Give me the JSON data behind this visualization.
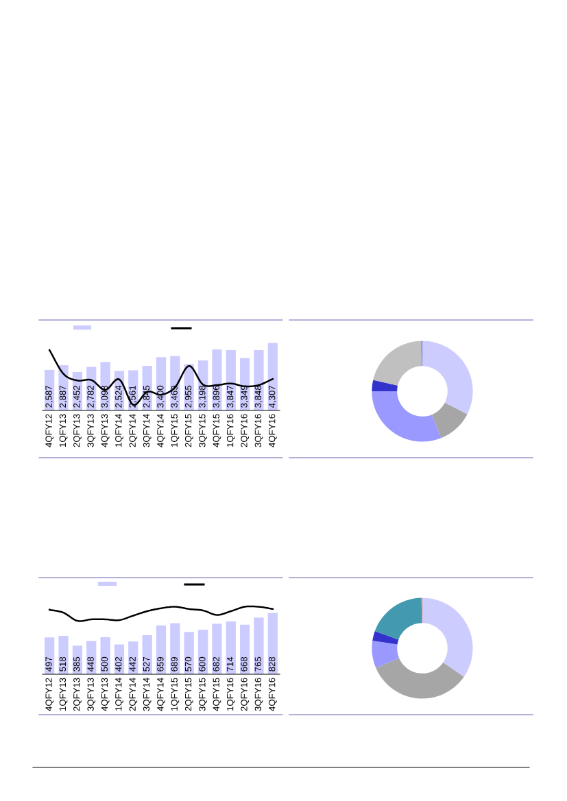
{
  "chart_data": [
    {
      "type": "bar",
      "categories": [
        "4QFY12",
        "1QFY13",
        "2QFY13",
        "3QFY13",
        "4QFY13",
        "1QFY14",
        "2QFY14",
        "3QFY14",
        "4QFY14",
        "1QFY15",
        "2QFY15",
        "3QFY15",
        "4QFY15",
        "1QFY16",
        "2QFY16",
        "3QFY16",
        "4QFY16"
      ],
      "series": [
        {
          "type": "bar",
          "color": "#ccccff",
          "values": [
            2587,
            2887,
            2452,
            2782,
            3098,
            2524,
            2561,
            2845,
            3400,
            3469,
            2955,
            3198,
            3896,
            3847,
            3349,
            3848,
            4307
          ],
          "value_labels": [
            "2,587",
            "2,887",
            "2,452",
            "2,782",
            "3,098",
            "2,524",
            "2,561",
            "2,845",
            "3,400",
            "3,469",
            "2,955",
            "3,198",
            "3,896",
            "3,847",
            "3,349",
            "3,848",
            "4,307"
          ]
        },
        {
          "type": "line",
          "color": "#000000",
          "values": [
            3850,
            2340,
            1910,
            1940,
            1310,
            1980,
            360,
            1190,
            1000,
            1480,
            2840,
            1650,
            1620,
            1720,
            1540,
            1620,
            2010
          ]
        }
      ],
      "tick_labels": "x"
    },
    {
      "type": "donut",
      "categories": [
        null,
        null,
        null,
        null,
        null,
        null
      ],
      "values": [
        32.5,
        11.4,
        31.1,
        3.6,
        21.1,
        0.3
      ],
      "colors": [
        "#ccccff",
        "#a6a6a6",
        "#9999ff",
        "#3333cc",
        "#c0c0c0",
        "#6666cc"
      ]
    },
    {
      "type": "bar",
      "categories": [
        "4QFY12",
        "1QFY13",
        "2QFY13",
        "3QFY13",
        "4QFY13",
        "1QFY14",
        "2QFY14",
        "3QFY14",
        "4QFY14",
        "1QFY15",
        "2QFY15",
        "3QFY15",
        "4QFY15",
        "1QFY16",
        "2QFY16",
        "3QFY16",
        "4QFY16"
      ],
      "series": [
        {
          "type": "bar",
          "color": "#ccccff",
          "values": [
            497,
            518,
            385,
            448,
            500,
            402,
            442,
            527,
            659,
            689,
            570,
            600,
            682,
            714,
            668,
            765,
            828
          ],
          "value_labels": [
            "497",
            "518",
            "385",
            "448",
            "500",
            "402",
            "442",
            "527",
            "659",
            "689",
            "570",
            "600",
            "682",
            "714",
            "668",
            "765",
            "828"
          ]
        },
        {
          "type": "line",
          "color": "#000000",
          "values": [
            870,
            830,
            720,
            740,
            740,
            730,
            790,
            850,
            890,
            910,
            880,
            860,
            800,
            850,
            910,
            910,
            880
          ]
        }
      ],
      "tick_labels": "x"
    },
    {
      "type": "donut",
      "categories": [
        null,
        null,
        null,
        null,
        null,
        null
      ],
      "values": [
        34.6,
        34.0,
        8.8,
        3.1,
        19.2,
        0.3
      ],
      "colors": [
        "#ccccff",
        "#a6a6a6",
        "#9999ff",
        "#3333cc",
        "#4299b0",
        "#e07b39"
      ]
    }
  ]
}
